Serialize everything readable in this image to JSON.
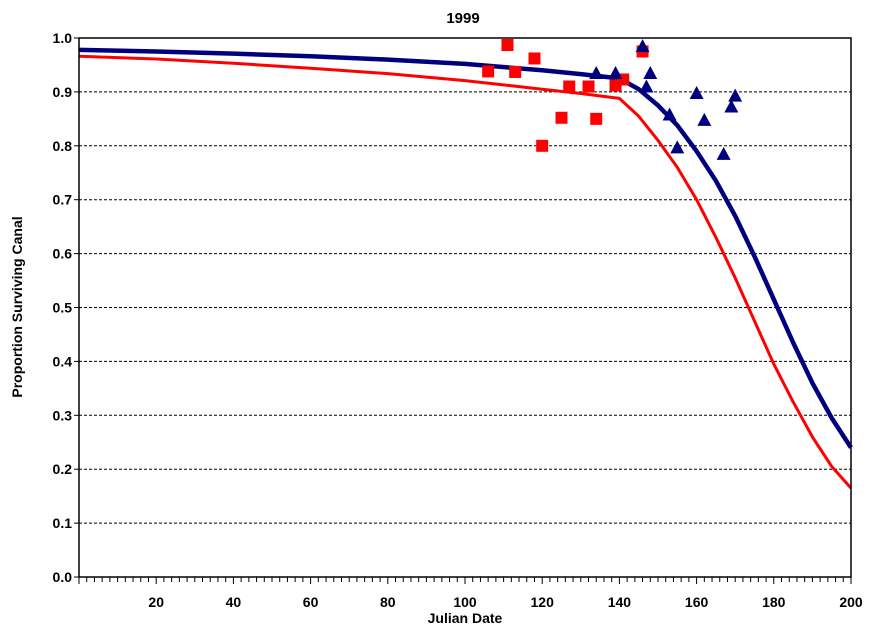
{
  "chart_data": {
    "type": "scatter",
    "title": "1999",
    "xlabel": "Julian Date",
    "ylabel": "Proportion Surviving Canal",
    "xlim": [
      0,
      200
    ],
    "ylim": [
      0.0,
      1.0
    ],
    "x_ticks": [
      20,
      40,
      60,
      80,
      100,
      120,
      140,
      160,
      180,
      200
    ],
    "x_tick_labels": [
      "20",
      "40",
      "60",
      "80",
      "100",
      "120",
      "140",
      "160",
      "180",
      "200"
    ],
    "y_ticks": [
      0.0,
      0.1,
      0.2,
      0.3,
      0.4,
      0.5,
      0.6,
      0.7,
      0.8,
      0.9,
      1.0
    ],
    "y_tick_labels": [
      "0.0",
      "0.1",
      "0.2",
      "0.3",
      "0.4",
      "0.5",
      "0.6",
      "0.7",
      "0.8",
      "0.9",
      "1.0"
    ],
    "grid": "horizontal dashed",
    "legend": "none",
    "series": [
      {
        "kind": "line",
        "color": "#00007f",
        "x": [
          0,
          20,
          40,
          60,
          80,
          100,
          120,
          130,
          140,
          145,
          150,
          155,
          160,
          165,
          170,
          175,
          180,
          185,
          190,
          195,
          200
        ],
        "y": [
          0.978,
          0.975,
          0.971,
          0.966,
          0.96,
          0.952,
          0.94,
          0.933,
          0.925,
          0.905,
          0.875,
          0.838,
          0.79,
          0.735,
          0.67,
          0.595,
          0.515,
          0.435,
          0.36,
          0.295,
          0.24
        ]
      },
      {
        "kind": "line",
        "color": "#ff0000",
        "x": [
          0,
          20,
          40,
          60,
          80,
          100,
          120,
          130,
          140,
          145,
          150,
          155,
          160,
          165,
          170,
          175,
          180,
          185,
          190,
          195,
          200
        ],
        "y": [
          0.966,
          0.961,
          0.953,
          0.944,
          0.934,
          0.921,
          0.905,
          0.897,
          0.888,
          0.855,
          0.81,
          0.76,
          0.7,
          0.63,
          0.555,
          0.475,
          0.395,
          0.325,
          0.26,
          0.205,
          0.165
        ]
      },
      {
        "kind": "points",
        "marker": "square",
        "color": "#ff0000",
        "points": [
          [
            106,
            0.938
          ],
          [
            111,
            0.987
          ],
          [
            113,
            0.937
          ],
          [
            118,
            0.962
          ],
          [
            120,
            0.8
          ],
          [
            125,
            0.852
          ],
          [
            127,
            0.91
          ],
          [
            132,
            0.91
          ],
          [
            134,
            0.85
          ],
          [
            139,
            0.912
          ],
          [
            141,
            0.923
          ],
          [
            146,
            0.975
          ]
        ]
      },
      {
        "kind": "points",
        "marker": "triangle",
        "color": "#00007f",
        "points": [
          [
            134,
            0.935
          ],
          [
            139,
            0.935
          ],
          [
            146,
            0.985
          ],
          [
            147,
            0.91
          ],
          [
            148,
            0.935
          ],
          [
            153,
            0.858
          ],
          [
            155,
            0.797
          ],
          [
            160,
            0.898
          ],
          [
            162,
            0.848
          ],
          [
            167,
            0.785
          ],
          [
            169,
            0.873
          ],
          [
            170,
            0.893
          ]
        ]
      }
    ]
  }
}
